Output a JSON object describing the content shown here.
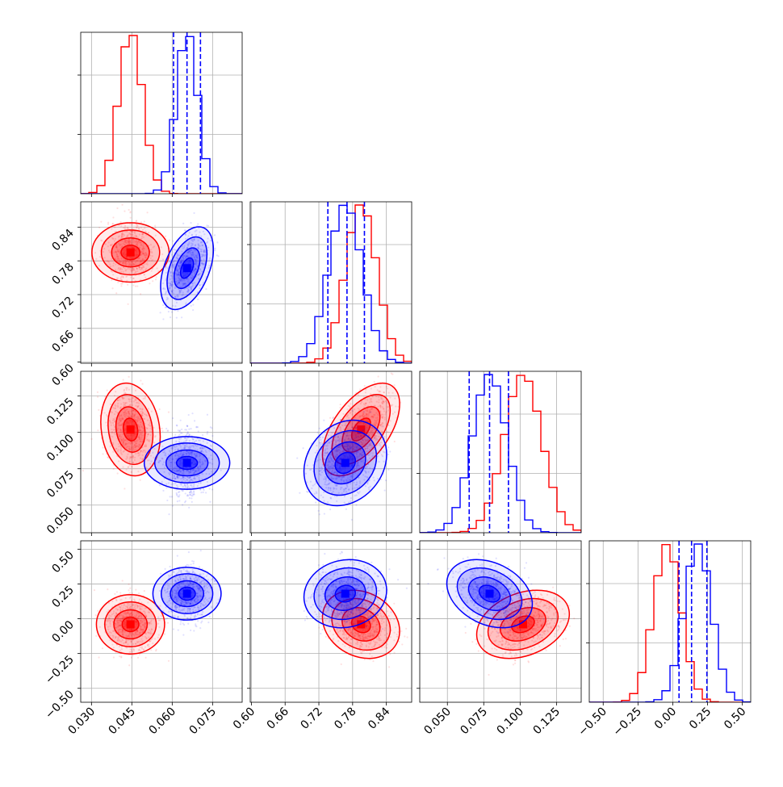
{
  "chart_data": {
    "type": "corner",
    "title": "",
    "grid": true,
    "colors": {
      "series_a": "#ff0000",
      "series_b": "#0000ff",
      "grid": "#b0b0b0"
    },
    "parameters": [
      {
        "ticks": [
          "0.030",
          "0.045",
          "0.060",
          "0.075"
        ],
        "tick_values": [
          0.03,
          0.045,
          0.06,
          0.075
        ],
        "range": [
          0.026,
          0.086
        ]
      },
      {
        "ticks": [
          "0.60",
          "0.66",
          "0.72",
          "0.78",
          "0.84"
        ],
        "tick_values": [
          0.6,
          0.66,
          0.72,
          0.78,
          0.84
        ],
        "range": [
          0.598,
          0.885
        ]
      },
      {
        "ticks": [
          "0.050",
          "0.075",
          "0.100",
          "0.125"
        ],
        "tick_values": [
          0.05,
          0.075,
          0.1,
          0.125
        ],
        "range": [
          0.031,
          0.142
        ]
      },
      {
        "ticks": [
          "−0.50",
          "−0.25",
          "0.00",
          "0.25",
          "0.50"
        ],
        "tick_values": [
          -0.5,
          -0.25,
          0.0,
          0.25,
          0.5
        ],
        "range": [
          -0.6,
          0.56
        ]
      }
    ],
    "series": [
      {
        "key": "a",
        "color": "#ff0000",
        "mean": [
          0.0445,
          0.795,
          0.102,
          -0.04
        ],
        "sd": [
          0.0045,
          0.028,
          0.013,
          0.1
        ],
        "corr": [
          [
            0,
            1,
            0
          ],
          [
            2,
            3,
            0.3
          ],
          [
            0,
            2,
            -0.15
          ],
          [
            1,
            2,
            0.55
          ],
          [
            1,
            3,
            -0.2
          ]
        ]
      },
      {
        "key": "b",
        "color": "#0000ff",
        "mean": [
          0.0655,
          0.767,
          0.079,
          0.18
        ],
        "sd": [
          0.004,
          0.03,
          0.012,
          0.1
        ],
        "corr": [
          [
            0,
            1,
            0.45
          ],
          [
            2,
            3,
            -0.3
          ],
          [
            1,
            2,
            0.2
          ],
          [
            1,
            3,
            0.1
          ]
        ]
      }
    ],
    "quantile_lines": [
      {
        "param": 0,
        "values": [
          0.0605,
          0.0655,
          0.0705
        ]
      },
      {
        "param": 1,
        "values": [
          0.736,
          0.77,
          0.801
        ]
      },
      {
        "param": 2,
        "values": [
          0.065,
          0.079,
          0.092
        ]
      },
      {
        "param": 3,
        "values": [
          0.045,
          0.135,
          0.245
        ]
      }
    ]
  }
}
